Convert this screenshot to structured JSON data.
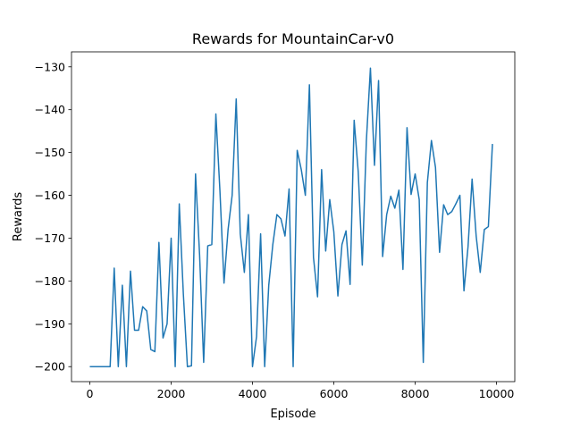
{
  "chart_data": {
    "type": "line",
    "title": "Rewards for MountainCar-v0",
    "xlabel": "Episode",
    "ylabel": "Rewards",
    "xlim": [
      -450,
      10450
    ],
    "ylim": [
      -203.5,
      -126.5
    ],
    "xticks": [
      0,
      2000,
      4000,
      6000,
      8000,
      10000
    ],
    "xtick_labels": [
      "0",
      "2000",
      "4000",
      "6000",
      "8000",
      "10000"
    ],
    "yticks": [
      -200,
      -190,
      -180,
      -170,
      -160,
      -150,
      -140,
      -130
    ],
    "ytick_labels": [
      "−200",
      "−190",
      "−180",
      "−170",
      "−160",
      "−150",
      "−140",
      "−130"
    ],
    "grid": false,
    "line_color": "#1f77b4",
    "series": [
      {
        "x": [
          0,
          100,
          200,
          300,
          400,
          500,
          600,
          700,
          800,
          900,
          1000,
          1100,
          1200,
          1300,
          1400,
          1500,
          1600,
          1700,
          1800,
          1900,
          2000,
          2100,
          2200,
          2300,
          2400,
          2500,
          2600,
          2700,
          2800,
          2900,
          3000,
          3100,
          3200,
          3300,
          3400,
          3500,
          3600,
          3700,
          3800,
          3900,
          4000,
          4100,
          4200,
          4300,
          4400,
          4500,
          4600,
          4700,
          4800,
          4900,
          5000,
          5100,
          5200,
          5300,
          5400,
          5500,
          5600,
          5700,
          5800,
          5900,
          6000,
          6100,
          6200,
          6300,
          6400,
          6500,
          6600,
          6700,
          6800,
          6900,
          7000,
          7100,
          7200,
          7300,
          7400,
          7500,
          7600,
          7700,
          7800,
          7900,
          8000,
          8100,
          8200,
          8300,
          8400,
          8500,
          8600,
          8700,
          8800,
          8900,
          9000,
          9100,
          9200,
          9300,
          9400,
          9500,
          9600,
          9700,
          9800,
          9900
        ],
        "values": [
          -200,
          -200,
          -200,
          -200,
          -200,
          -200,
          -177,
          -200,
          -181,
          -200,
          -177.7,
          -191.5,
          -191.5,
          -186,
          -187,
          -196,
          -196.5,
          -171,
          -193.3,
          -190,
          -170,
          -200,
          -162,
          -183,
          -200,
          -199.8,
          -155,
          -174,
          -199,
          -171.8,
          -171.5,
          -141,
          -159,
          -180.5,
          -168,
          -160,
          -137.5,
          -169,
          -178,
          -164.5,
          -200,
          -193,
          -169,
          -200,
          -181,
          -171.5,
          -164.5,
          -165.5,
          -169.5,
          -158.5,
          -200,
          -149.5,
          -154,
          -160,
          -134.2,
          -174.5,
          -183.7,
          -154,
          -173,
          -161,
          -168.5,
          -183.5,
          -171.5,
          -168.3,
          -180.8,
          -142.5,
          -154.5,
          -176.3,
          -147.3,
          -130.3,
          -153,
          -133.2,
          -174.3,
          -164.5,
          -160.2,
          -163,
          -158.8,
          -177.3,
          -144.2,
          -159.8,
          -155,
          -161,
          -199,
          -157,
          -147.2,
          -153.5,
          -173.3,
          -162.2,
          -164.5,
          -163.8,
          -162,
          -160,
          -182.3,
          -172,
          -156.2,
          -169.5,
          -178,
          -168,
          -167.3,
          -148
        ]
      }
    ]
  }
}
